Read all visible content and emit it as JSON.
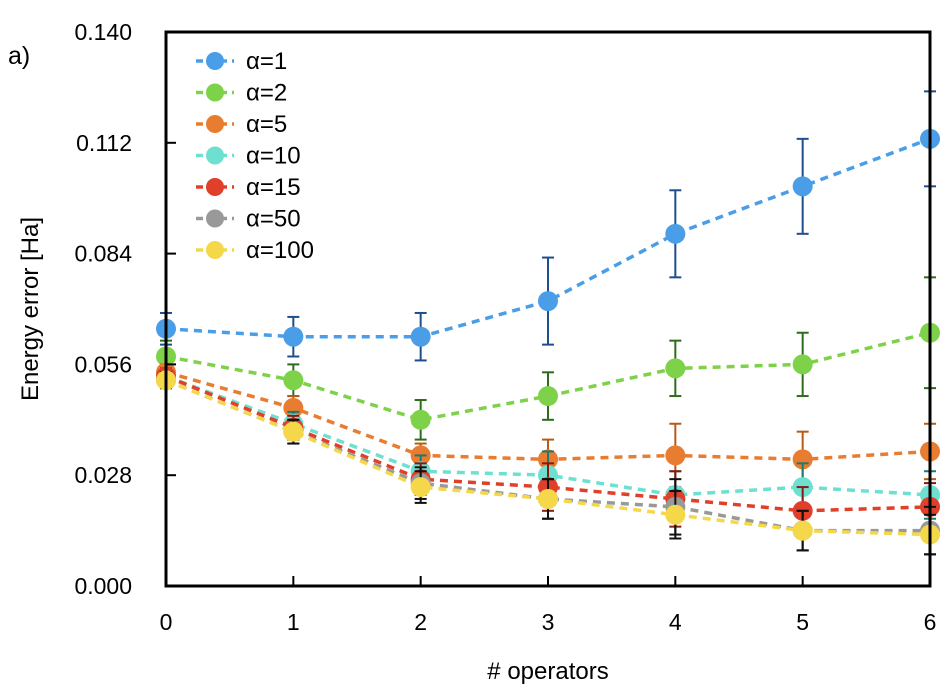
{
  "panel_label": "a)",
  "chart_data": {
    "type": "line",
    "xlabel": "# operators",
    "ylabel": "Energy error [Ha]",
    "xlim": [
      0,
      6
    ],
    "ylim": [
      0,
      0.14
    ],
    "x_ticks": [
      0,
      1,
      2,
      3,
      4,
      5,
      6
    ],
    "x_tick_labels": [
      "0",
      "1",
      "2",
      "3",
      "4",
      "5",
      "6"
    ],
    "y_ticks": [
      0,
      0.028,
      0.056,
      0.084,
      0.112,
      0.14
    ],
    "y_tick_labels": [
      "0.000",
      "0.028",
      "0.056",
      "0.084",
      "0.112",
      "0.140"
    ],
    "legend_position": "top-left",
    "grid": false,
    "x": [
      0,
      1,
      2,
      3,
      4,
      5,
      6
    ],
    "series": [
      {
        "name": "α=1",
        "color": "#4a9ee8",
        "errcolor": "#1f4e8c",
        "values": [
          0.065,
          0.063,
          0.063,
          0.072,
          0.089,
          0.101,
          0.113
        ],
        "errors": [
          0.004,
          0.005,
          0.006,
          0.011,
          0.011,
          0.012,
          0.012
        ]
      },
      {
        "name": "α=2",
        "color": "#7ed24a",
        "errcolor": "#2e6b1a",
        "values": [
          0.058,
          0.052,
          0.042,
          0.048,
          0.055,
          0.056,
          0.064
        ],
        "errors": [
          0.004,
          0.004,
          0.005,
          0.006,
          0.007,
          0.008,
          0.014
        ]
      },
      {
        "name": "α=5",
        "color": "#e87c30",
        "errcolor": "#b85a15",
        "values": [
          0.054,
          0.045,
          0.033,
          0.032,
          0.033,
          0.032,
          0.034
        ],
        "errors": [
          0.002,
          0.003,
          0.003,
          0.005,
          0.008,
          0.007,
          0.007
        ]
      },
      {
        "name": "α=10",
        "color": "#6ee0d0",
        "errcolor": "#1c7a6e",
        "values": [
          0.053,
          0.041,
          0.029,
          0.028,
          0.023,
          0.025,
          0.023
        ],
        "errors": [
          0.002,
          0.003,
          0.004,
          0.006,
          0.006,
          0.006,
          0.006
        ]
      },
      {
        "name": "α=15",
        "color": "#e0402a",
        "errcolor": "#8a1a10",
        "values": [
          0.053,
          0.04,
          0.027,
          0.025,
          0.022,
          0.019,
          0.02
        ],
        "errors": [
          0.002,
          0.003,
          0.004,
          0.006,
          0.007,
          0.006,
          0.006
        ]
      },
      {
        "name": "α=50",
        "color": "#999999",
        "errcolor": "#111111",
        "values": [
          0.052,
          0.039,
          0.026,
          0.022,
          0.02,
          0.014,
          0.014
        ],
        "errors": [
          0.002,
          0.003,
          0.004,
          0.005,
          0.007,
          0.005,
          0.006
        ]
      },
      {
        "name": "α=100",
        "color": "#f4d84a",
        "errcolor": "#111111",
        "values": [
          0.052,
          0.039,
          0.025,
          0.022,
          0.018,
          0.014,
          0.013
        ],
        "errors": [
          0.002,
          0.003,
          0.004,
          0.005,
          0.006,
          0.005,
          0.005
        ]
      }
    ]
  }
}
